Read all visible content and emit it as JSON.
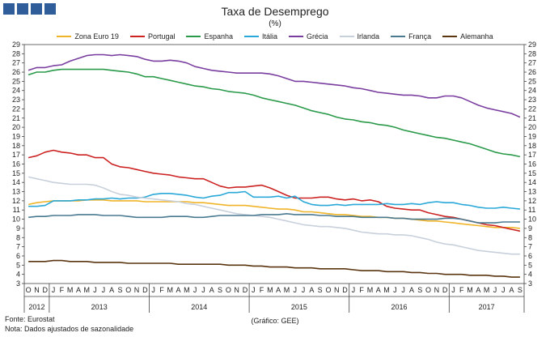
{
  "header": {
    "title": "Taxa de Desemprego",
    "subtitle": "(%)"
  },
  "footer": {
    "source": "Fonte: Eurostat",
    "note": "Nota: Dados ajustados de sazonalidade",
    "credit": "(Gráfico: GEE)"
  },
  "chart_data": {
    "type": "line",
    "title": "Taxa de Desemprego",
    "subtitle": "(%)",
    "ylim": [
      3,
      29
    ],
    "yticks": [
      3,
      4,
      5,
      6,
      7,
      8,
      9,
      10,
      11,
      12,
      13,
      14,
      15,
      16,
      17,
      18,
      19,
      20,
      21,
      22,
      23,
      24,
      25,
      26,
      27,
      28,
      29
    ],
    "grid": false,
    "legend_position": "top-center",
    "month_labels": [
      "O",
      "N",
      "D",
      "J",
      "F",
      "M",
      "A",
      "M",
      "J",
      "J",
      "A",
      "S",
      "O",
      "N",
      "D",
      "J",
      "F",
      "M",
      "A",
      "M",
      "J",
      "J",
      "A",
      "S",
      "O",
      "N",
      "D",
      "J",
      "F",
      "M",
      "A",
      "M",
      "J",
      "J",
      "A",
      "S",
      "O",
      "N",
      "D",
      "J",
      "F",
      "M",
      "A",
      "M",
      "J",
      "J",
      "A",
      "S",
      "O",
      "N",
      "D",
      "J",
      "F",
      "M",
      "A",
      "M",
      "J",
      "J",
      "A",
      "S"
    ],
    "years": [
      {
        "label": "2012",
        "start": 0,
        "end": 2
      },
      {
        "label": "2013",
        "start": 3,
        "end": 14
      },
      {
        "label": "2014",
        "start": 15,
        "end": 26
      },
      {
        "label": "2015",
        "start": 27,
        "end": 38
      },
      {
        "label": "2016",
        "start": 39,
        "end": 50
      },
      {
        "label": "2017",
        "start": 51,
        "end": 59
      }
    ],
    "series": [
      {
        "name": "Zona Euro 19",
        "color": "#f0b429",
        "values": [
          11.6,
          11.8,
          11.9,
          12.0,
          12.0,
          12.0,
          12.0,
          12.1,
          12.1,
          12.1,
          12.0,
          12.0,
          12.0,
          12.0,
          11.9,
          11.9,
          11.9,
          11.9,
          11.9,
          11.9,
          11.8,
          11.8,
          11.7,
          11.6,
          11.5,
          11.5,
          11.5,
          11.4,
          11.3,
          11.2,
          11.1,
          11.1,
          11.0,
          10.8,
          10.8,
          10.7,
          10.6,
          10.5,
          10.5,
          10.4,
          10.3,
          10.3,
          10.2,
          10.2,
          10.1,
          10.1,
          10.0,
          9.9,
          9.8,
          9.8,
          9.7,
          9.6,
          9.5,
          9.4,
          9.3,
          9.2,
          9.1,
          9.1,
          9.1,
          9.0
        ]
      },
      {
        "name": "Portugal",
        "color": "#cc2222",
        "values": [
          16.7,
          16.9,
          17.3,
          17.5,
          17.3,
          17.2,
          17.0,
          17.0,
          16.7,
          16.7,
          16.0,
          15.7,
          15.6,
          15.4,
          15.2,
          15.0,
          14.9,
          14.8,
          14.6,
          14.5,
          14.4,
          14.4,
          14.0,
          13.6,
          13.4,
          13.5,
          13.5,
          13.6,
          13.7,
          13.4,
          13.0,
          12.6,
          12.3,
          12.3,
          12.3,
          12.4,
          12.4,
          12.2,
          12.1,
          12.2,
          12.0,
          12.1,
          11.9,
          11.4,
          11.2,
          11.1,
          11.0,
          11.0,
          10.7,
          10.5,
          10.3,
          10.2,
          10.0,
          9.8,
          9.6,
          9.4,
          9.3,
          9.1,
          8.9,
          8.7
        ]
      },
      {
        "name": "Espanha",
        "color": "#2a9a4a",
        "values": [
          25.7,
          26.0,
          26.0,
          26.2,
          26.3,
          26.3,
          26.3,
          26.3,
          26.3,
          26.3,
          26.2,
          26.1,
          26.0,
          25.8,
          25.5,
          25.5,
          25.3,
          25.1,
          24.9,
          24.7,
          24.5,
          24.4,
          24.2,
          24.1,
          23.9,
          23.8,
          23.7,
          23.5,
          23.2,
          23.0,
          22.8,
          22.6,
          22.4,
          22.1,
          21.8,
          21.6,
          21.4,
          21.1,
          20.9,
          20.8,
          20.6,
          20.5,
          20.3,
          20.2,
          20.0,
          19.7,
          19.5,
          19.3,
          19.1,
          18.9,
          18.8,
          18.6,
          18.4,
          18.2,
          17.9,
          17.6,
          17.3,
          17.1,
          17.0,
          16.8
        ]
      },
      {
        "name": "Itália",
        "color": "#2aa8d8",
        "values": [
          11.4,
          11.4,
          11.5,
          12.0,
          12.0,
          12.0,
          12.1,
          12.1,
          12.2,
          12.2,
          12.3,
          12.2,
          12.3,
          12.3,
          12.4,
          12.7,
          12.8,
          12.8,
          12.7,
          12.6,
          12.4,
          12.3,
          12.5,
          12.6,
          12.9,
          12.9,
          13.0,
          12.4,
          12.4,
          12.4,
          12.5,
          12.3,
          12.5,
          11.9,
          11.6,
          11.5,
          11.5,
          11.6,
          11.5,
          11.6,
          11.6,
          11.6,
          11.6,
          11.7,
          11.6,
          11.6,
          11.7,
          11.6,
          11.8,
          11.9,
          11.8,
          11.8,
          11.6,
          11.5,
          11.3,
          11.2,
          11.2,
          11.3,
          11.2,
          11.1
        ]
      },
      {
        "name": "Grécia",
        "color": "#7a3ea0",
        "values": [
          26.2,
          26.5,
          26.5,
          26.7,
          26.8,
          27.2,
          27.5,
          27.8,
          27.9,
          27.9,
          27.8,
          27.9,
          27.8,
          27.7,
          27.4,
          27.2,
          27.2,
          27.3,
          27.2,
          27.0,
          26.6,
          26.4,
          26.2,
          26.1,
          26.0,
          25.9,
          25.9,
          25.9,
          25.9,
          25.8,
          25.6,
          25.3,
          25.0,
          25.0,
          24.9,
          24.8,
          24.7,
          24.6,
          24.5,
          24.3,
          24.2,
          24.0,
          23.8,
          23.7,
          23.6,
          23.5,
          23.5,
          23.4,
          23.2,
          23.2,
          23.4,
          23.4,
          23.2,
          22.8,
          22.4,
          22.1,
          21.9,
          21.7,
          21.5,
          21.1
        ]
      },
      {
        "name": "Irlanda",
        "color": "#c8d0dc",
        "values": [
          14.6,
          14.4,
          14.2,
          14.0,
          13.9,
          13.8,
          13.8,
          13.8,
          13.7,
          13.4,
          13.0,
          12.7,
          12.6,
          12.4,
          12.3,
          12.2,
          12.1,
          12.0,
          11.9,
          11.7,
          11.6,
          11.4,
          11.2,
          11.0,
          10.8,
          10.6,
          10.5,
          10.4,
          10.3,
          10.2,
          10.0,
          9.8,
          9.6,
          9.4,
          9.3,
          9.2,
          9.2,
          9.1,
          9.0,
          8.8,
          8.6,
          8.5,
          8.4,
          8.4,
          8.3,
          8.3,
          8.2,
          8.0,
          7.8,
          7.5,
          7.3,
          7.2,
          7.0,
          6.8,
          6.6,
          6.5,
          6.4,
          6.3,
          6.2,
          6.2
        ]
      },
      {
        "name": "França",
        "color": "#4a7a90",
        "values": [
          10.2,
          10.3,
          10.3,
          10.4,
          10.4,
          10.4,
          10.5,
          10.5,
          10.5,
          10.4,
          10.4,
          10.4,
          10.3,
          10.2,
          10.2,
          10.2,
          10.2,
          10.3,
          10.3,
          10.3,
          10.2,
          10.2,
          10.3,
          10.4,
          10.4,
          10.4,
          10.4,
          10.4,
          10.5,
          10.5,
          10.5,
          10.6,
          10.5,
          10.5,
          10.5,
          10.4,
          10.4,
          10.3,
          10.3,
          10.3,
          10.2,
          10.2,
          10.2,
          10.2,
          10.1,
          10.1,
          10.0,
          10.0,
          10.0,
          10.0,
          10.1,
          10.1,
          10.0,
          9.8,
          9.6,
          9.6,
          9.6,
          9.7,
          9.7,
          9.7
        ]
      },
      {
        "name": "Alemanha",
        "color": "#5a3510",
        "values": [
          5.4,
          5.4,
          5.4,
          5.5,
          5.5,
          5.4,
          5.4,
          5.4,
          5.3,
          5.3,
          5.3,
          5.3,
          5.2,
          5.2,
          5.2,
          5.2,
          5.2,
          5.2,
          5.1,
          5.1,
          5.1,
          5.1,
          5.1,
          5.1,
          5.0,
          5.0,
          5.0,
          4.9,
          4.9,
          4.8,
          4.8,
          4.8,
          4.7,
          4.7,
          4.7,
          4.6,
          4.6,
          4.6,
          4.6,
          4.5,
          4.4,
          4.4,
          4.4,
          4.3,
          4.3,
          4.3,
          4.2,
          4.2,
          4.1,
          4.1,
          4.0,
          4.0,
          4.0,
          3.9,
          3.9,
          3.9,
          3.8,
          3.8,
          3.7,
          3.7
        ]
      }
    ]
  }
}
